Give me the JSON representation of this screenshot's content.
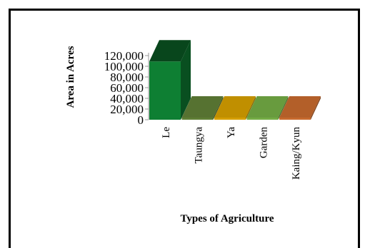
{
  "chart_data": {
    "type": "bar",
    "categories": [
      "Le",
      "Taungya",
      "Ya",
      "Garden",
      "Kaing/Kyun"
    ],
    "values": [
      109000,
      4000,
      3000,
      2000,
      500
    ],
    "colors": [
      "#0e7f33",
      "#5f7f36",
      "#d59f00",
      "#74ac45",
      "#c76a2e"
    ],
    "ylabel": "Area in Acres",
    "xlabel": "Types of Agriculture",
    "yticks": [
      "0",
      "20,000",
      "40,000",
      "60,000",
      "80,000",
      "100,000",
      "120,000"
    ],
    "ylim": [
      0,
      120000
    ],
    "grid": false,
    "legend": "none"
  }
}
